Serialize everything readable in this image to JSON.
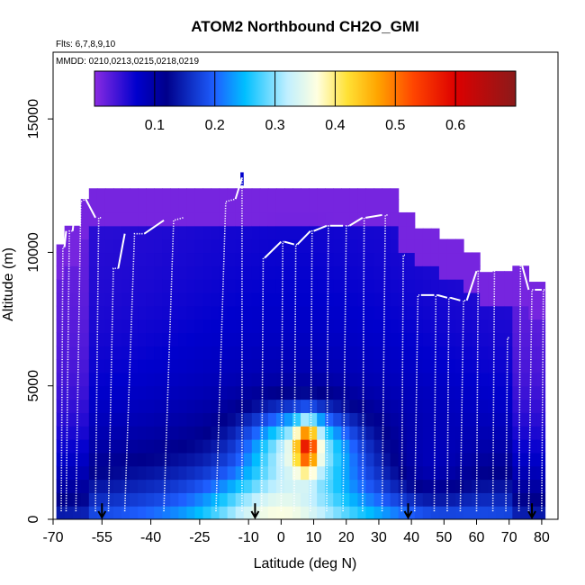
{
  "chart_data": {
    "type": "heatmap",
    "title": "ATOM2 Northbound CH2O_GMI",
    "flights_note": "Flts: 6,7,8,9,10",
    "dates_note": "MMDD: 0210,0213,0215,0218,0219",
    "xlabel": "Latitude (deg N)",
    "ylabel": "Altitude (m)",
    "xlim": [
      -70,
      85
    ],
    "ylim": [
      0,
      17500
    ],
    "xticks": [
      {
        "value": -70,
        "label": "-70"
      },
      {
        "value": -55,
        "label": "-55"
      },
      {
        "value": -40,
        "label": "-40"
      },
      {
        "value": -25,
        "label": "-25"
      },
      {
        "value": -10,
        "label": "-10"
      },
      {
        "value": 0,
        "label": "0"
      },
      {
        "value": 10,
        "label": "10"
      },
      {
        "value": 20,
        "label": "20"
      },
      {
        "value": 30,
        "label": "30"
      },
      {
        "value": 40,
        "label": "40"
      },
      {
        "value": 50,
        "label": "50"
      },
      {
        "value": 60,
        "label": "60"
      },
      {
        "value": 70,
        "label": "70"
      },
      {
        "value": 80,
        "label": "80"
      }
    ],
    "yticks": [
      {
        "value": 0,
        "label": "0"
      },
      {
        "value": 5000,
        "label": "5000"
      },
      {
        "value": 10000,
        "label": "10000"
      },
      {
        "value": 15000,
        "label": "15000"
      }
    ],
    "colorbar": {
      "range": [
        0,
        0.7
      ],
      "tick_values": [
        0.1,
        0.2,
        0.3,
        0.4,
        0.5,
        0.6
      ],
      "tick_labels": [
        "0.1",
        "0.2",
        "0.3",
        "0.4",
        "0.5",
        "0.6"
      ],
      "stops": [
        {
          "v": 0.0,
          "c": "#8a2be2"
        },
        {
          "v": 0.07,
          "c": "#0000cd"
        },
        {
          "v": 0.12,
          "c": "#00008b"
        },
        {
          "v": 0.2,
          "c": "#1e5fff"
        },
        {
          "v": 0.25,
          "c": "#00bfff"
        },
        {
          "v": 0.32,
          "c": "#bfefff"
        },
        {
          "v": 0.37,
          "c": "#ffffe0"
        },
        {
          "v": 0.42,
          "c": "#ffe135"
        },
        {
          "v": 0.47,
          "c": "#ffa500"
        },
        {
          "v": 0.53,
          "c": "#ff4500"
        },
        {
          "v": 0.6,
          "c": "#dd0000"
        },
        {
          "v": 0.7,
          "c": "#8b1a1a"
        }
      ]
    },
    "sounding_markers_lat": [
      -55,
      -8,
      39,
      77
    ],
    "profiles": [
      {
        "lat_start": -67.5,
        "lat_end": -66.5,
        "top": 10200,
        "max": 10200
      },
      {
        "lat_start": -66,
        "lat_end": -64,
        "top": 10800,
        "max": 10800
      },
      {
        "lat_start": -63,
        "lat_end": -60,
        "top": 11900,
        "max": 12000
      },
      {
        "lat_start": -57,
        "lat_end": -55,
        "top": 11300,
        "max": 11300
      },
      {
        "lat_start": -53,
        "lat_end": -50,
        "top": 9400,
        "max": 9400
      },
      {
        "lat_start": -48,
        "lat_end": -42,
        "top": 10700,
        "max": 10700
      },
      {
        "lat_start": -36,
        "lat_end": -30,
        "top": 11200,
        "max": 11300
      },
      {
        "lat_start": -20,
        "lat_end": -14,
        "top": 11900,
        "max": 12000
      },
      {
        "lat_start": -12,
        "lat_end": -12,
        "top": 12800,
        "max": 12800
      },
      {
        "lat_start": -6,
        "lat_end": -5,
        "top": 9800,
        "max": 9800
      },
      {
        "lat_start": 0,
        "lat_end": 1,
        "top": 10400,
        "max": 10400
      },
      {
        "lat_start": 4,
        "lat_end": 5,
        "top": 10300,
        "max": 10300
      },
      {
        "lat_start": 9,
        "lat_end": 10,
        "top": 10800,
        "max": 10800
      },
      {
        "lat_start": 14,
        "lat_end": 15,
        "top": 11000,
        "max": 11000
      },
      {
        "lat_start": 19,
        "lat_end": 21,
        "top": 11000,
        "max": 11000
      },
      {
        "lat_start": 25,
        "lat_end": 26,
        "top": 11300,
        "max": 11300
      },
      {
        "lat_start": 31,
        "lat_end": 33,
        "top": 11400,
        "max": 11400
      },
      {
        "lat_start": 37,
        "lat_end": 38,
        "top": 9900,
        "max": 9900
      },
      {
        "lat_start": 41,
        "lat_end": 43,
        "top": 8400,
        "max": 8400
      },
      {
        "lat_start": 47,
        "lat_end": 48,
        "top": 8400,
        "max": 8400
      },
      {
        "lat_start": 51,
        "lat_end": 52,
        "top": 8300,
        "max": 8300
      },
      {
        "lat_start": 55,
        "lat_end": 57,
        "top": 8200,
        "max": 8200
      },
      {
        "lat_start": 60,
        "lat_end": 61,
        "top": 9300,
        "max": 9300
      },
      {
        "lat_start": 65,
        "lat_end": 66,
        "top": 9300,
        "max": 9300
      },
      {
        "lat_start": 69,
        "lat_end": 70,
        "top": 6800,
        "max": 6800
      },
      {
        "lat_start": 73,
        "lat_end": 74,
        "top": 9500,
        "max": 9500
      },
      {
        "lat_start": 76,
        "lat_end": 78,
        "top": 8600,
        "max": 8600
      },
      {
        "lat_start": 80,
        "lat_end": 81,
        "top": 8600,
        "max": 8600
      }
    ]
  }
}
